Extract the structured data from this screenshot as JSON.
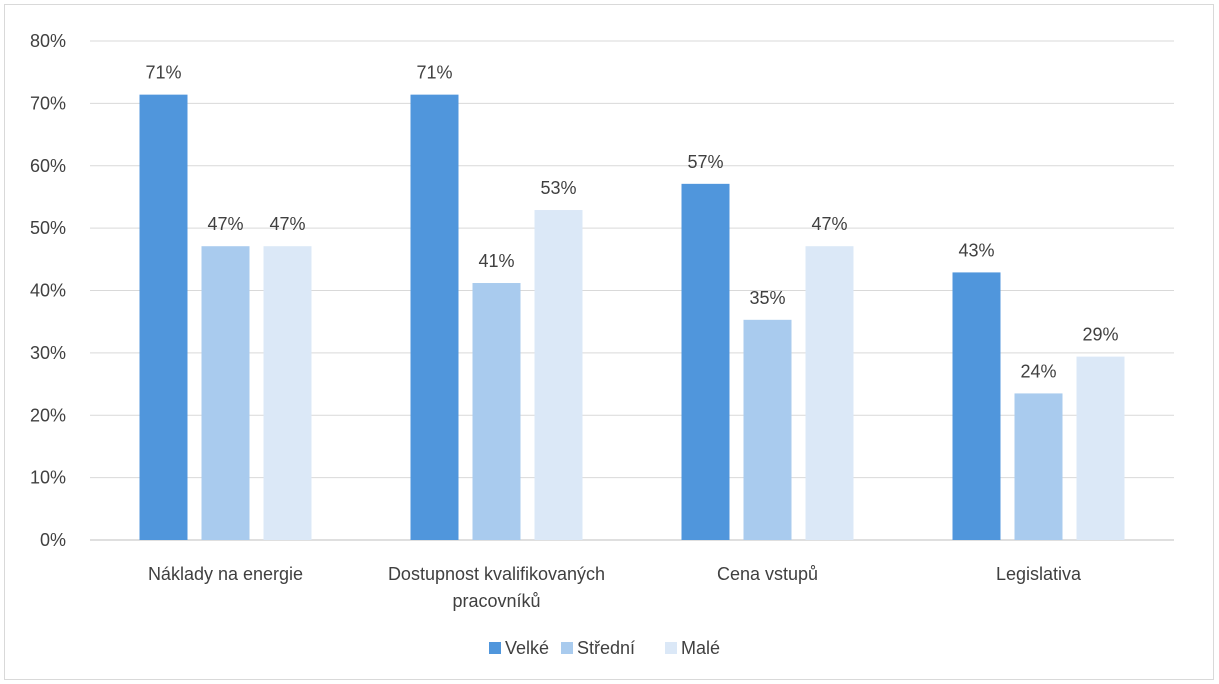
{
  "chart_data": {
    "type": "bar",
    "title": "",
    "xlabel": "",
    "ylabel": "",
    "ylim": [
      0,
      80
    ],
    "yticks": [
      "0%",
      "10%",
      "20%",
      "30%",
      "40%",
      "50%",
      "60%",
      "70%",
      "80%"
    ],
    "categories": [
      [
        "Náklady na energie"
      ],
      [
        "Dostupnost kvalifikovaných",
        "pracovníků"
      ],
      [
        "Cena vstupů"
      ],
      [
        "Legislativa"
      ]
    ],
    "series": [
      {
        "name": "Velké",
        "color": "#5096dc",
        "values": [
          71.4,
          71.4,
          57.1,
          42.9
        ],
        "labels": [
          "71%",
          "71%",
          "57%",
          "43%"
        ]
      },
      {
        "name": "Střední",
        "color": "#a9cbee",
        "values": [
          47.1,
          41.2,
          35.3,
          23.5
        ],
        "labels": [
          "47%",
          "41%",
          "35%",
          "24%"
        ]
      },
      {
        "name": "Malé",
        "color": "#dbe8f7",
        "values": [
          47.1,
          52.9,
          47.1,
          29.4
        ],
        "labels": [
          "47%",
          "53%",
          "47%",
          "29%"
        ]
      }
    ],
    "grid": true,
    "legend_position": "bottom"
  }
}
